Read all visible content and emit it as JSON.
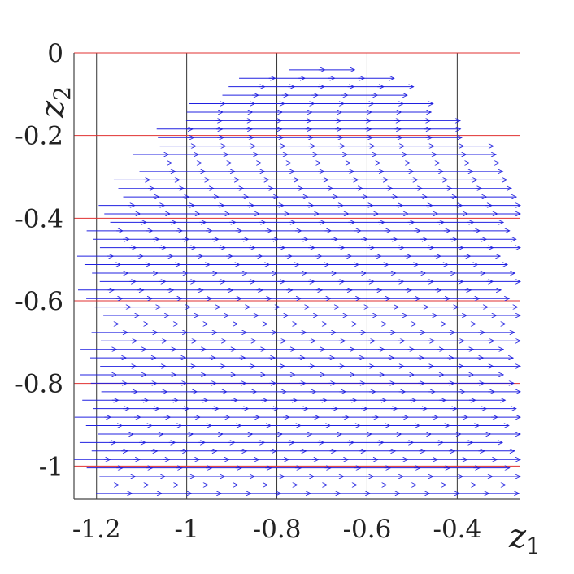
{
  "chart_data": {
    "type": "quiver",
    "xlabel": "z",
    "xlabel_subscript": "1",
    "ylabel": "z",
    "ylabel_subscript": "2",
    "xlim": [
      -1.25,
      -0.26
    ],
    "ylim": [
      -1.08,
      0.0
    ],
    "xticks": [
      {
        "value": -1.2,
        "label": "-1.2"
      },
      {
        "value": -1.0,
        "label": "-1"
      },
      {
        "value": -0.8,
        "label": "-0.8"
      },
      {
        "value": -0.6,
        "label": "-0.6"
      },
      {
        "value": -0.4,
        "label": "-0.4"
      }
    ],
    "yticks": [
      {
        "value": 0.0,
        "label": "0"
      },
      {
        "value": -0.2,
        "label": "-0.2"
      },
      {
        "value": -0.4,
        "label": "-0.4"
      },
      {
        "value": -0.6,
        "label": "-0.6"
      },
      {
        "value": -0.8,
        "label": "-0.8"
      },
      {
        "value": -1.0,
        "label": "-1"
      }
    ],
    "vertical_lines": [
      -1.2,
      -1.0,
      -0.8,
      -0.6,
      -0.4
    ],
    "horizontal_lines": [
      0.0,
      -0.2,
      -0.4,
      -0.6,
      -0.8,
      -1.0
    ],
    "colors": {
      "arrows": "#2020e0",
      "horizontal_lines": "#e03030",
      "vertical_lines": "#333333",
      "axes": "#444444"
    },
    "field": {
      "center": [
        -0.72,
        -0.75
      ],
      "semi_axis_x": 0.56,
      "semi_axis_y": 0.72,
      "y_top": 0.0,
      "y_bottom": -1.08,
      "arrow_dx": 0.08,
      "arrow_dy": 0.0,
      "direction": "+z1"
    }
  }
}
